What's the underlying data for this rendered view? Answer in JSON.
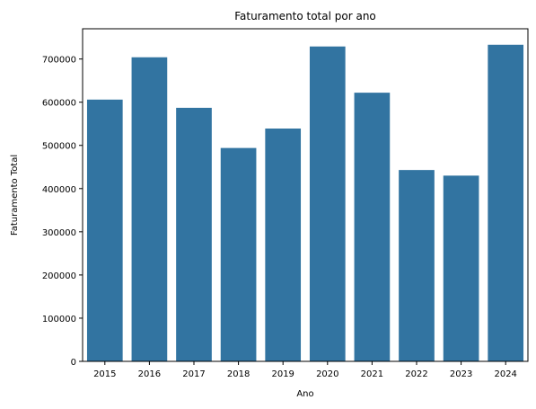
{
  "chart_data": {
    "type": "bar",
    "title": "Faturamento total por ano",
    "xlabel": "Ano",
    "ylabel": "Faturamento Total",
    "categories": [
      "2015",
      "2016",
      "2017",
      "2018",
      "2019",
      "2020",
      "2021",
      "2022",
      "2023",
      "2024"
    ],
    "values": [
      606000,
      704000,
      587000,
      494000,
      539000,
      729000,
      622000,
      443000,
      430000,
      733000
    ],
    "ylim": [
      0,
      770000
    ],
    "yticks": [
      0,
      100000,
      200000,
      300000,
      400000,
      500000,
      600000,
      700000
    ],
    "ytick_labels": [
      "0",
      "100000",
      "200000",
      "300000",
      "400000",
      "500000",
      "600000",
      "700000"
    ],
    "bar_color": "#3274a1",
    "grid": false,
    "legend": "none"
  }
}
